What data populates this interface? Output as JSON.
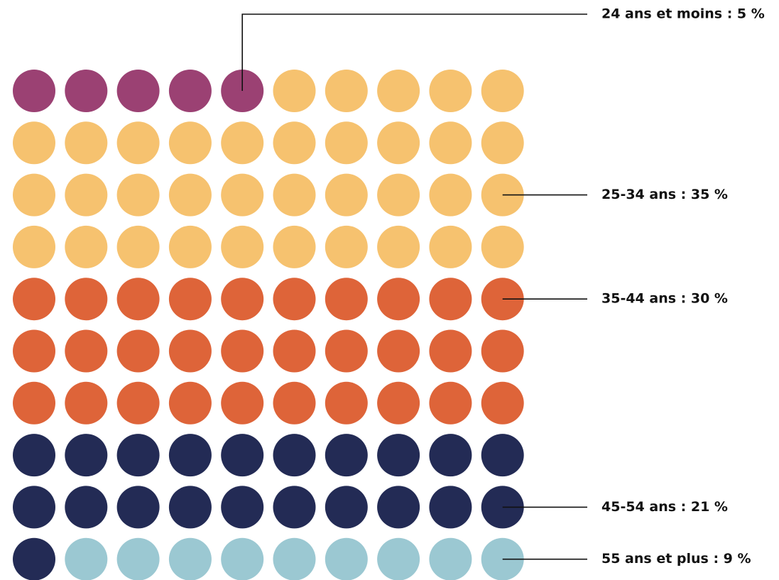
{
  "chart_data": {
    "type": "waffle",
    "title": "",
    "total_units": 100,
    "rows": 10,
    "columns": 10,
    "fill_order": "row-major from top-left",
    "series": [
      {
        "name": "24 ans et moins",
        "value": 5,
        "color": "#9B4173",
        "label": "24 ans et moins : 5 %"
      },
      {
        "name": "25-34 ans",
        "value": 35,
        "color": "#F6C26F",
        "label": "25-34 ans : 35 %"
      },
      {
        "name": "35-44 ans",
        "value": 30,
        "color": "#DE6439",
        "label": "35-44 ans : 30 %"
      },
      {
        "name": "45-54 ans",
        "value": 21,
        "color": "#232B55",
        "label": "45-54 ans : 21 %"
      },
      {
        "name": "55 ans et plus",
        "value": 9,
        "color": "#9BC8D2",
        "label": "55 ans et plus : 9 %"
      }
    ]
  }
}
